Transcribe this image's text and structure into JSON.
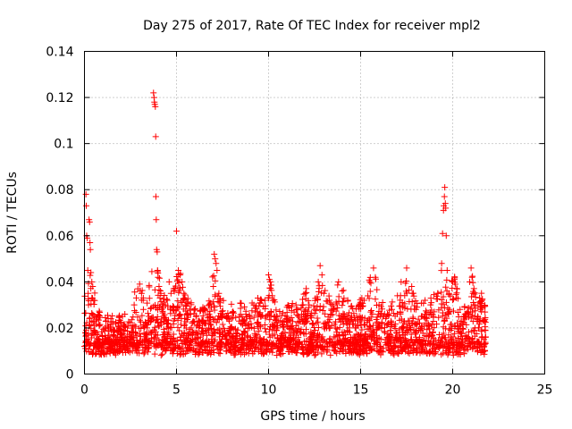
{
  "chart_data": {
    "type": "scatter",
    "title": "Day 275 of 2017, Rate Of TEC Index for receiver mpl2",
    "xlabel": "GPS time / hours",
    "ylabel": "ROTI / TECUs",
    "xlim": [
      0,
      25
    ],
    "ylim": [
      0,
      0.14
    ],
    "grid": true,
    "xticks": [
      {
        "value": 0,
        "label": "0"
      },
      {
        "value": 5,
        "label": "5"
      },
      {
        "value": 10,
        "label": "10"
      },
      {
        "value": 15,
        "label": "15"
      },
      {
        "value": 20,
        "label": "20"
      },
      {
        "value": 25,
        "label": "25"
      }
    ],
    "yticks": [
      {
        "value": 0,
        "label": "0"
      },
      {
        "value": 0.02,
        "label": "0.02"
      },
      {
        "value": 0.04,
        "label": "0.04"
      },
      {
        "value": 0.06,
        "label": "0.06"
      },
      {
        "value": 0.08,
        "label": "0.08"
      },
      {
        "value": 0.1,
        "label": "0.1"
      },
      {
        "value": 0.12,
        "label": "0.12"
      },
      {
        "value": 0.14,
        "label": "0.14"
      }
    ],
    "marker": "+",
    "series": [
      {
        "name": "ROTI",
        "color": "#ff0000",
        "points": [
          [
            0.0,
            0.012
          ],
          [
            0.05,
            0.018
          ],
          [
            0.08,
            0.078
          ],
          [
            0.1,
            0.073
          ],
          [
            0.12,
            0.06
          ],
          [
            0.15,
            0.059
          ],
          [
            0.18,
            0.045
          ],
          [
            0.2,
            0.035
          ],
          [
            0.22,
            0.03
          ],
          [
            0.25,
            0.067
          ],
          [
            0.28,
            0.066
          ],
          [
            0.3,
            0.057
          ],
          [
            0.32,
            0.054
          ],
          [
            0.35,
            0.044
          ],
          [
            0.4,
            0.04
          ],
          [
            0.45,
            0.038
          ],
          [
            0.5,
            0.032
          ],
          [
            0.55,
            0.025
          ],
          [
            0.6,
            0.018
          ],
          [
            0.7,
            0.012
          ],
          [
            0.8,
            0.015
          ],
          [
            1.0,
            0.01
          ],
          [
            1.2,
            0.014
          ],
          [
            1.5,
            0.012
          ],
          [
            1.8,
            0.016
          ],
          [
            2.0,
            0.011
          ],
          [
            2.2,
            0.019
          ],
          [
            2.5,
            0.015
          ],
          [
            2.7,
            0.03
          ],
          [
            2.9,
            0.037
          ],
          [
            3.0,
            0.039
          ],
          [
            3.1,
            0.035
          ],
          [
            3.2,
            0.028
          ],
          [
            3.4,
            0.02
          ],
          [
            3.5,
            0.025
          ],
          [
            3.6,
            0.018
          ],
          [
            3.75,
            0.122
          ],
          [
            3.78,
            0.12
          ],
          [
            3.8,
            0.118
          ],
          [
            3.82,
            0.117
          ],
          [
            3.85,
            0.116
          ],
          [
            3.87,
            0.103
          ],
          [
            3.88,
            0.077
          ],
          [
            3.9,
            0.067
          ],
          [
            3.92,
            0.054
          ],
          [
            3.95,
            0.053
          ],
          [
            3.97,
            0.045
          ],
          [
            4.0,
            0.042
          ],
          [
            4.05,
            0.038
          ],
          [
            4.1,
            0.033
          ],
          [
            4.2,
            0.028
          ],
          [
            4.3,
            0.025
          ],
          [
            4.4,
            0.03
          ],
          [
            4.5,
            0.032
          ],
          [
            4.6,
            0.04
          ],
          [
            4.7,
            0.035
          ],
          [
            4.8,
            0.028
          ],
          [
            4.9,
            0.024
          ],
          [
            5.0,
            0.062
          ],
          [
            5.1,
            0.045
          ],
          [
            5.2,
            0.043
          ],
          [
            5.3,
            0.04
          ],
          [
            5.4,
            0.035
          ],
          [
            5.5,
            0.03
          ],
          [
            5.6,
            0.026
          ],
          [
            5.8,
            0.02
          ],
          [
            6.0,
            0.018
          ],
          [
            6.3,
            0.016
          ],
          [
            6.5,
            0.022
          ],
          [
            6.8,
            0.025
          ],
          [
            7.0,
            0.038
          ],
          [
            7.05,
            0.052
          ],
          [
            7.1,
            0.05
          ],
          [
            7.15,
            0.048
          ],
          [
            7.2,
            0.045
          ],
          [
            7.3,
            0.035
          ],
          [
            7.5,
            0.025
          ],
          [
            7.8,
            0.018
          ],
          [
            8.0,
            0.02
          ],
          [
            8.2,
            0.015
          ],
          [
            8.5,
            0.022
          ],
          [
            8.7,
            0.018
          ],
          [
            9.0,
            0.024
          ],
          [
            9.2,
            0.03
          ],
          [
            9.4,
            0.027
          ],
          [
            9.6,
            0.025
          ],
          [
            9.8,
            0.032
          ],
          [
            10.0,
            0.043
          ],
          [
            10.05,
            0.041
          ],
          [
            10.1,
            0.04
          ],
          [
            10.2,
            0.034
          ],
          [
            10.3,
            0.025
          ],
          [
            10.5,
            0.02
          ],
          [
            10.8,
            0.018
          ],
          [
            11.0,
            0.025
          ],
          [
            11.3,
            0.02
          ],
          [
            11.5,
            0.028
          ],
          [
            11.8,
            0.026
          ],
          [
            12.0,
            0.035
          ],
          [
            12.2,
            0.03
          ],
          [
            12.5,
            0.028
          ],
          [
            12.7,
            0.04
          ],
          [
            12.8,
            0.047
          ],
          [
            12.9,
            0.043
          ],
          [
            13.0,
            0.035
          ],
          [
            13.3,
            0.032
          ],
          [
            13.5,
            0.028
          ],
          [
            13.8,
            0.04
          ],
          [
            14.0,
            0.036
          ],
          [
            14.3,
            0.032
          ],
          [
            14.5,
            0.025
          ],
          [
            14.7,
            0.02
          ],
          [
            15.0,
            0.03
          ],
          [
            15.2,
            0.032
          ],
          [
            15.5,
            0.04
          ],
          [
            15.7,
            0.046
          ],
          [
            15.8,
            0.042
          ],
          [
            16.0,
            0.03
          ],
          [
            16.2,
            0.025
          ],
          [
            16.5,
            0.022
          ],
          [
            16.7,
            0.028
          ],
          [
            17.0,
            0.034
          ],
          [
            17.2,
            0.04
          ],
          [
            17.5,
            0.046
          ],
          [
            17.8,
            0.035
          ],
          [
            18.0,
            0.028
          ],
          [
            18.3,
            0.025
          ],
          [
            18.5,
            0.032
          ],
          [
            18.8,
            0.03
          ],
          [
            19.0,
            0.027
          ],
          [
            19.2,
            0.035
          ],
          [
            19.4,
            0.048
          ],
          [
            19.45,
            0.061
          ],
          [
            19.5,
            0.071
          ],
          [
            19.52,
            0.073
          ],
          [
            19.55,
            0.077
          ],
          [
            19.57,
            0.081
          ],
          [
            19.6,
            0.074
          ],
          [
            19.62,
            0.072
          ],
          [
            19.65,
            0.06
          ],
          [
            19.7,
            0.045
          ],
          [
            19.8,
            0.035
          ],
          [
            20.0,
            0.04
          ],
          [
            20.1,
            0.041
          ],
          [
            20.2,
            0.033
          ],
          [
            20.4,
            0.028
          ],
          [
            20.6,
            0.025
          ],
          [
            20.8,
            0.027
          ],
          [
            21.0,
            0.046
          ],
          [
            21.05,
            0.042
          ],
          [
            21.1,
            0.035
          ],
          [
            21.2,
            0.03
          ],
          [
            21.4,
            0.02
          ],
          [
            21.5,
            0.028
          ],
          [
            21.6,
            0.032
          ],
          [
            21.7,
            0.015
          ],
          [
            21.75,
            0.01
          ]
        ]
      }
    ]
  }
}
